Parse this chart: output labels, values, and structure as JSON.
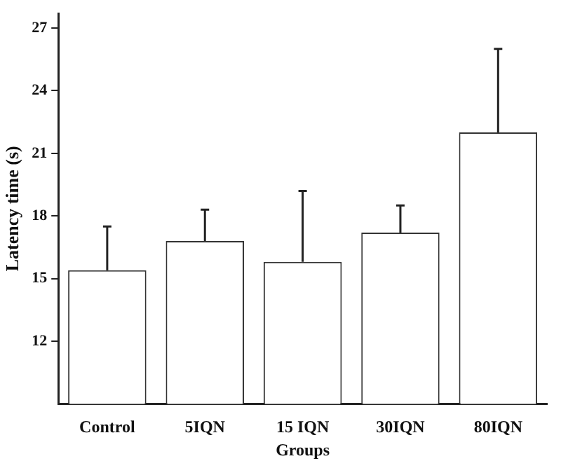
{
  "chart_data": {
    "type": "bar",
    "xlabel": "Groups",
    "ylabel": "Latency time (s)",
    "categories": [
      "Control",
      "5IQN",
      "15 IQN",
      "30IQN",
      "80IQN"
    ],
    "values": [
      15.4,
      16.8,
      15.8,
      17.2,
      22.0
    ],
    "errors": [
      [
        15.4,
        17.5
      ],
      [
        16.8,
        18.3
      ],
      [
        15.8,
        19.2
      ],
      [
        17.2,
        18.5
      ],
      [
        22.0,
        26.0
      ]
    ],
    "color": "#ffffff",
    "ylim": [
      9,
      27.7
    ],
    "yticks": [
      12,
      15,
      18,
      21,
      24,
      27
    ]
  }
}
